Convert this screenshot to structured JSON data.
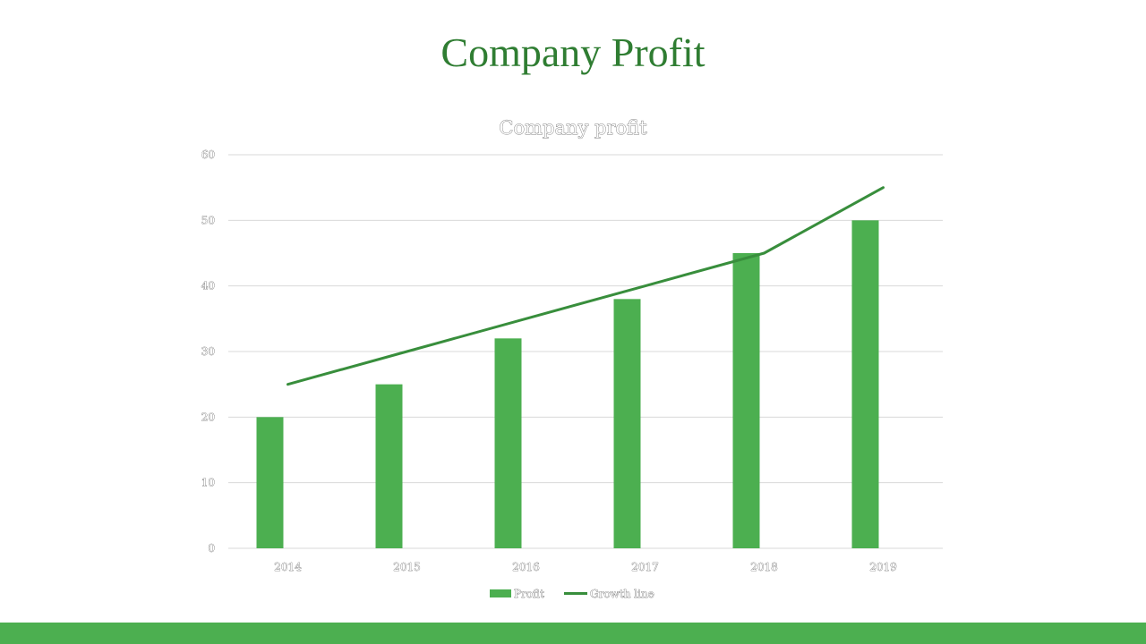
{
  "slide": {
    "title": "Company Profit"
  },
  "colors": {
    "title": "#2f7d32",
    "bar": "#4caf50",
    "line": "#388e3c",
    "footer": "#4caf50",
    "grid": "#d9d9d9"
  },
  "chart_data": {
    "type": "bar",
    "title": "Company profit",
    "categories": [
      "2014",
      "2015",
      "2016",
      "2017",
      "2018",
      "2019"
    ],
    "series": [
      {
        "name": "Profit",
        "type": "bar",
        "values": [
          20,
          25,
          32,
          38,
          45,
          50
        ]
      },
      {
        "name": "Growth line",
        "type": "line",
        "values": [
          25,
          30,
          35,
          40,
          45,
          55
        ]
      }
    ],
    "ylim": [
      0,
      60
    ],
    "yticks": [
      0,
      10,
      20,
      30,
      40,
      50,
      60
    ],
    "grid": true,
    "legend": "bottom"
  }
}
